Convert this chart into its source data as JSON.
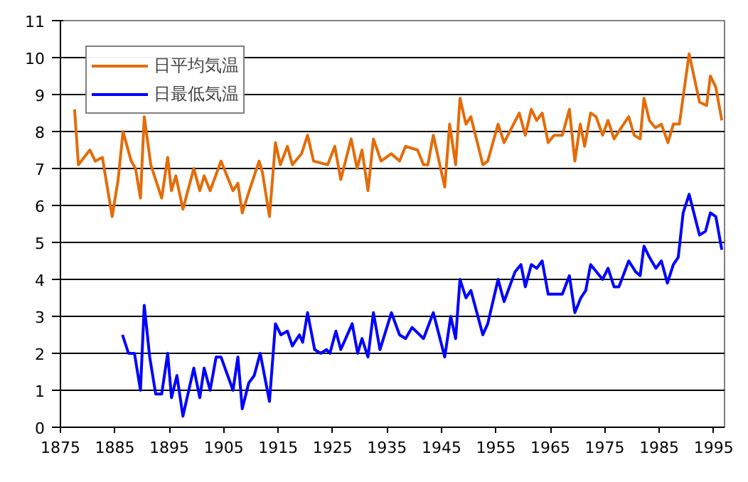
{
  "chart_data": {
    "type": "line",
    "xlim": [
      1875,
      1997
    ],
    "xticks": [
      1875,
      1885,
      1895,
      1905,
      1915,
      1925,
      1935,
      1945,
      1955,
      1965,
      1975,
      1985,
      1995
    ],
    "ylim": [
      0,
      11
    ],
    "yticks": [
      0,
      1,
      2,
      3,
      4,
      5,
      6,
      7,
      8,
      9,
      10,
      11
    ],
    "grid": "y",
    "legend": "top left",
    "series": [
      {
        "name": "日平均気温",
        "color": "#e36c09",
        "x": [
          1877.6,
          1878.3,
          1880.4,
          1881.4,
          1882.7,
          1884.5,
          1885.6,
          1886.5,
          1888.0,
          1888.8,
          1889.7,
          1890.4,
          1891.6,
          1893.6,
          1894.7,
          1895.4,
          1896.2,
          1897.5,
          1899.5,
          1900.6,
          1901.4,
          1902.5,
          1904.5,
          1906.7,
          1907.6,
          1908.4,
          1909.7,
          1911.5,
          1912.1,
          1913.4,
          1914.5,
          1915.4,
          1916.7,
          1917.6,
          1919.3,
          1920.4,
          1921.5,
          1924.1,
          1925.4,
          1926.5,
          1928.4,
          1929.5,
          1930.4,
          1931.5,
          1932.5,
          1933.9,
          1935.8,
          1937.3,
          1938.4,
          1940.6,
          1941.7,
          1942.5,
          1943.5,
          1945.6,
          1946.5,
          1947.6,
          1948.4,
          1949.5,
          1950.4,
          1952.6,
          1953.5,
          1955.4,
          1956.5,
          1959.3,
          1960.4,
          1961.5,
          1962.5,
          1963.5,
          1964.6,
          1965.7,
          1967.2,
          1968.5,
          1969.5,
          1970.5,
          1971.3,
          1972.4,
          1973.4,
          1974.6,
          1975.6,
          1976.7,
          1978.0,
          1979.4,
          1980.4,
          1981.5,
          1982.2,
          1983.2,
          1984.3,
          1985.4,
          1986.6,
          1987.6,
          1988.7,
          1990.5,
          1992.4,
          1993.7,
          1994.4,
          1995.4,
          1996.5
        ],
        "values": [
          8.6,
          7.1,
          7.5,
          7.2,
          7.3,
          5.7,
          6.7,
          8.0,
          7.2,
          7.0,
          6.2,
          8.4,
          7.1,
          6.2,
          7.3,
          6.4,
          6.8,
          5.9,
          7.0,
          6.4,
          6.8,
          6.4,
          7.2,
          6.4,
          6.6,
          5.8,
          6.4,
          7.2,
          6.9,
          5.7,
          7.7,
          7.1,
          7.6,
          7.1,
          7.4,
          7.9,
          7.2,
          7.1,
          7.6,
          6.7,
          7.8,
          7.0,
          7.5,
          6.4,
          7.8,
          7.2,
          7.4,
          7.2,
          7.6,
          7.5,
          7.1,
          7.1,
          7.9,
          6.5,
          8.2,
          7.1,
          8.9,
          8.2,
          8.4,
          7.1,
          7.2,
          8.2,
          7.7,
          8.5,
          7.9,
          8.6,
          8.3,
          8.5,
          7.7,
          7.9,
          7.9,
          8.6,
          7.2,
          8.2,
          7.6,
          8.5,
          8.4,
          7.9,
          8.3,
          7.8,
          8.1,
          8.4,
          7.9,
          7.8,
          8.9,
          8.3,
          8.1,
          8.2,
          7.7,
          8.2,
          8.2,
          10.1,
          8.8,
          8.7,
          9.5,
          9.2,
          8.3
        ]
      },
      {
        "name": "日最低気温",
        "color": "#0000ff",
        "x": [
          1886.4,
          1887.5,
          1888.6,
          1889.7,
          1890.4,
          1891.4,
          1892.5,
          1893.6,
          1894.7,
          1895.4,
          1896.4,
          1897.5,
          1899.5,
          1900.6,
          1901.4,
          1902.5,
          1903.6,
          1904.5,
          1906.7,
          1907.6,
          1908.4,
          1909.6,
          1910.6,
          1911.7,
          1913.4,
          1914.5,
          1915.5,
          1916.7,
          1917.6,
          1918.9,
          1919.5,
          1920.4,
          1921.7,
          1922.8,
          1923.9,
          1924.5,
          1925.6,
          1926.5,
          1928.6,
          1929.6,
          1930.4,
          1931.5,
          1932.5,
          1933.7,
          1935.8,
          1937.3,
          1938.4,
          1939.6,
          1941.7,
          1943.5,
          1945.6,
          1946.7,
          1947.6,
          1948.4,
          1949.5,
          1950.4,
          1952.6,
          1953.5,
          1955.4,
          1956.5,
          1958.5,
          1959.6,
          1960.4,
          1961.5,
          1962.5,
          1963.5,
          1964.6,
          1967.2,
          1968.5,
          1969.5,
          1970.6,
          1971.5,
          1972.4,
          1974.6,
          1975.6,
          1976.7,
          1977.6,
          1979.4,
          1980.7,
          1981.5,
          1982.2,
          1983.2,
          1984.4,
          1985.4,
          1986.5,
          1987.6,
          1988.5,
          1989.4,
          1990.5,
          1992.4,
          1993.5,
          1994.4,
          1995.4,
          1996.5
        ],
        "values": [
          2.5,
          2.0,
          2.0,
          1.0,
          3.3,
          1.9,
          0.9,
          0.9,
          2.0,
          0.8,
          1.4,
          0.3,
          1.6,
          0.8,
          1.6,
          1.0,
          1.9,
          1.9,
          1.0,
          1.9,
          0.5,
          1.2,
          1.4,
          2.0,
          0.7,
          2.8,
          2.5,
          2.6,
          2.2,
          2.5,
          2.3,
          3.1,
          2.1,
          2.0,
          2.1,
          2.0,
          2.6,
          2.1,
          2.8,
          2.0,
          2.4,
          1.9,
          3.1,
          2.1,
          3.1,
          2.5,
          2.4,
          2.7,
          2.4,
          3.1,
          1.9,
          3.0,
          2.4,
          4.0,
          3.5,
          3.7,
          2.5,
          2.8,
          4.0,
          3.4,
          4.2,
          4.4,
          3.8,
          4.4,
          4.3,
          4.5,
          3.6,
          3.6,
          4.1,
          3.1,
          3.5,
          3.7,
          4.4,
          4.0,
          4.3,
          3.8,
          3.8,
          4.5,
          4.2,
          4.1,
          4.9,
          4.6,
          4.3,
          4.5,
          3.9,
          4.4,
          4.6,
          5.8,
          6.3,
          5.2,
          5.3,
          5.8,
          5.7,
          4.8
        ]
      }
    ]
  }
}
